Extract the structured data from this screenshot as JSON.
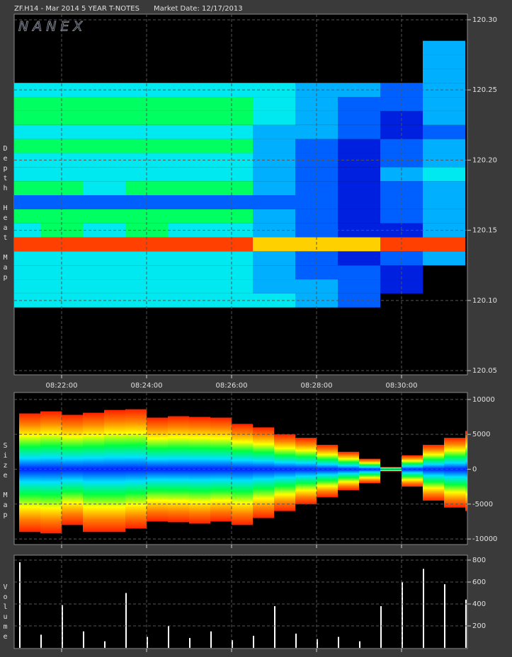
{
  "title": "ZF.H14 - Mar 2014 5 YEAR T-NOTES",
  "market_date": "Market Date: 12/17/2013",
  "watermark": "NANEX",
  "chart_data": [
    {
      "type": "heatmap",
      "y_label": "Depth Heat Map",
      "xlim": [
        "08:20:53",
        "08:31:33"
      ],
      "xticks": [
        "08:22:00",
        "08:24:00",
        "08:26:00",
        "08:28:00",
        "08:30:00"
      ],
      "ylim": [
        120.047,
        120.304
      ],
      "yticks": [
        {
          "value": 120.05,
          "label": "120.05"
        },
        {
          "value": 120.1,
          "label": "120.10"
        },
        {
          "value": 120.15,
          "label": "120.15"
        },
        {
          "value": 120.2,
          "label": "120.20"
        },
        {
          "value": 120.25,
          "label": "120.25"
        },
        {
          "value": 120.3,
          "label": "120.30"
        }
      ],
      "grid": true,
      "colorscale": [
        "#000000",
        "#00e8f0",
        "#00ff60",
        "#00b0ff",
        "#0060ff",
        "#0020e0",
        "#ff4000",
        "#ffd000"
      ],
      "x": [
        "08:21:00",
        "08:22:00",
        "08:23:00",
        "08:24:00",
        "08:25:00",
        "08:26:00",
        "08:27:00",
        "08:28:00",
        "08:29:00",
        "08:30:00",
        "08:31:00"
      ],
      "y": [
        120.1,
        120.11,
        120.12,
        120.13,
        120.14,
        120.15,
        120.16,
        120.17,
        120.18,
        120.19,
        120.2,
        120.21,
        120.22,
        120.23,
        120.24,
        120.25,
        120.26,
        120.27,
        120.28
      ],
      "z": [
        [
          1,
          1,
          1,
          1,
          1,
          1,
          1,
          3,
          4,
          0,
          0
        ],
        [
          1,
          1,
          1,
          1,
          1,
          1,
          3,
          3,
          4,
          5,
          0
        ],
        [
          1,
          1,
          1,
          1,
          1,
          1,
          3,
          4,
          4,
          5,
          0
        ],
        [
          1,
          1,
          1,
          1,
          1,
          1,
          3,
          4,
          5,
          4,
          3
        ],
        [
          6,
          6,
          6,
          6,
          6,
          6,
          7,
          7,
          7,
          6,
          6
        ],
        [
          1,
          2,
          1,
          2,
          1,
          1,
          3,
          4,
          5,
          5,
          3
        ],
        [
          2,
          2,
          2,
          2,
          2,
          2,
          3,
          4,
          5,
          4,
          3
        ],
        [
          4,
          4,
          4,
          4,
          4,
          4,
          4,
          4,
          5,
          4,
          3
        ],
        [
          2,
          2,
          1,
          2,
          2,
          2,
          3,
          4,
          5,
          4,
          3
        ],
        [
          1,
          1,
          1,
          1,
          1,
          1,
          3,
          4,
          5,
          3,
          1
        ],
        [
          1,
          1,
          1,
          1,
          1,
          1,
          3,
          4,
          5,
          4,
          3
        ],
        [
          2,
          2,
          2,
          2,
          2,
          2,
          3,
          4,
          5,
          4,
          3
        ],
        [
          1,
          1,
          1,
          1,
          1,
          1,
          3,
          3,
          4,
          5,
          4
        ],
        [
          2,
          2,
          2,
          2,
          2,
          2,
          1,
          3,
          4,
          5,
          3
        ],
        [
          2,
          2,
          2,
          2,
          2,
          2,
          1,
          3,
          4,
          4,
          3
        ],
        [
          1,
          1,
          1,
          1,
          1,
          1,
          1,
          3,
          3,
          4,
          3
        ],
        [
          0,
          0,
          0,
          0,
          0,
          0,
          0,
          0,
          0,
          0,
          3
        ],
        [
          0,
          0,
          0,
          0,
          0,
          0,
          0,
          0,
          0,
          0,
          3
        ],
        [
          0,
          0,
          0,
          0,
          0,
          0,
          0,
          0,
          0,
          0,
          3
        ]
      ]
    },
    {
      "type": "sizemap",
      "y_label": "Size Map",
      "xlim": [
        "08:20:53",
        "08:31:33"
      ],
      "xticks": [
        "08:22:00",
        "08:24:00",
        "08:26:00",
        "08:28:00",
        "08:30:00"
      ],
      "ylim": [
        -10800,
        11000
      ],
      "yticks": [
        10000,
        5000,
        0,
        -5000,
        -10000
      ],
      "grid": true,
      "colorscale": [
        "#ff2000",
        "#ff8000",
        "#ffff00",
        "#00ff40",
        "#00e0ff",
        "#0020ff"
      ],
      "x": [
        "08:21:00",
        "08:21:30",
        "08:22:00",
        "08:22:30",
        "08:23:00",
        "08:23:30",
        "08:24:00",
        "08:24:30",
        "08:25:00",
        "08:25:30",
        "08:26:00",
        "08:26:30",
        "08:27:00",
        "08:27:30",
        "08:28:00",
        "08:28:30",
        "08:29:00",
        "08:29:30",
        "08:30:00",
        "08:30:30",
        "08:31:00",
        "08:31:30"
      ],
      "series": [
        {
          "values": [
            8000,
            8300,
            7800,
            8100,
            8500,
            8600,
            7400,
            7600,
            7500,
            7400,
            6500,
            6000,
            5000,
            4500,
            3500,
            2500,
            1500,
            300,
            2000,
            3500,
            4500,
            5500
          ]
        },
        {
          "values": [
            -9000,
            -9200,
            -8000,
            -9000,
            -9000,
            -8500,
            -7500,
            -7600,
            -7800,
            -7500,
            -8000,
            -7000,
            -6000,
            -5000,
            -4000,
            -3000,
            -2000,
            -300,
            -2500,
            -4500,
            -5500,
            -6000
          ]
        }
      ]
    },
    {
      "type": "volume",
      "y_label": "Volume",
      "xlim": [
        "08:20:53",
        "08:31:33"
      ],
      "xticks": [
        "08:22:00",
        "08:24:00",
        "08:26:00",
        "08:28:00",
        "08:30:00"
      ],
      "ylim": [
        -6,
        845
      ],
      "yticks": [
        200,
        400,
        600,
        800
      ],
      "grid": true,
      "color": "#ffffff",
      "x": [
        "08:21:00",
        "08:21:30",
        "08:22:00",
        "08:22:30",
        "08:23:00",
        "08:23:30",
        "08:24:00",
        "08:24:30",
        "08:25:00",
        "08:25:30",
        "08:26:00",
        "08:26:30",
        "08:27:00",
        "08:27:30",
        "08:28:00",
        "08:28:30",
        "08:29:00",
        "08:29:30",
        "08:30:00",
        "08:30:30",
        "08:31:00",
        "08:31:30"
      ],
      "values": [
        780,
        120,
        390,
        150,
        60,
        500,
        100,
        200,
        90,
        150,
        70,
        110,
        380,
        130,
        80,
        100,
        60,
        380,
        600,
        720,
        580,
        440
      ]
    }
  ]
}
